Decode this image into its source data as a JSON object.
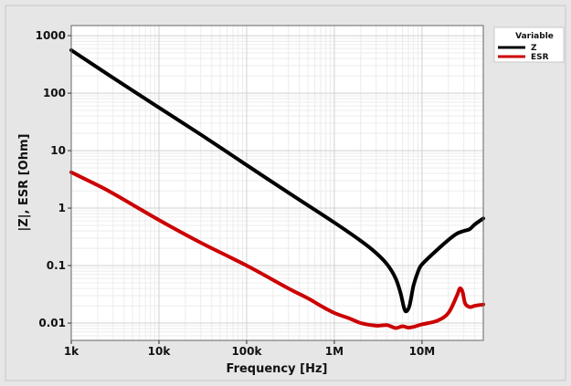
{
  "chart_data": {
    "type": "line",
    "title": "",
    "xlabel": "Frequency [Hz]",
    "ylabel": "|Z|, ESR [Ohm]",
    "x_scale": "log",
    "y_scale": "log",
    "xlim": [
      1000,
      50000000
    ],
    "ylim": [
      0.005,
      1500
    ],
    "x_ticks": [
      {
        "value": 1000,
        "label": "1k"
      },
      {
        "value": 10000,
        "label": "10k"
      },
      {
        "value": 100000,
        "label": "100k"
      },
      {
        "value": 1000000,
        "label": "1M"
      },
      {
        "value": 10000000,
        "label": "10M"
      }
    ],
    "y_ticks": [
      {
        "value": 0.01,
        "label": "0.01"
      },
      {
        "value": 0.1,
        "label": "0.1"
      },
      {
        "value": 1,
        "label": "1"
      },
      {
        "value": 10,
        "label": "10"
      },
      {
        "value": 100,
        "label": "100"
      },
      {
        "value": 1000,
        "label": "1000"
      }
    ],
    "grid": true,
    "legend": {
      "title": "Variable",
      "position": "top-right"
    },
    "series": [
      {
        "name": "Z",
        "color": "#000000",
        "points": [
          [
            1000,
            560
          ],
          [
            3000,
            185
          ],
          [
            10000,
            56
          ],
          [
            30000,
            19
          ],
          [
            100000,
            5.6
          ],
          [
            300000,
            1.85
          ],
          [
            1000000,
            0.56
          ],
          [
            2000000,
            0.27
          ],
          [
            3000000,
            0.165
          ],
          [
            4000000,
            0.105
          ],
          [
            5000000,
            0.06
          ],
          [
            5700000,
            0.033
          ],
          [
            6200000,
            0.019
          ],
          [
            6600000,
            0.016
          ],
          [
            7200000,
            0.02
          ],
          [
            8000000,
            0.045
          ],
          [
            9000000,
            0.078
          ],
          [
            10000000,
            0.105
          ],
          [
            15000000,
            0.19
          ],
          [
            20000000,
            0.28
          ],
          [
            25000000,
            0.36
          ],
          [
            30000000,
            0.4
          ],
          [
            35000000,
            0.43
          ],
          [
            40000000,
            0.52
          ],
          [
            50000000,
            0.66
          ]
        ]
      },
      {
        "name": "ESR",
        "color": "#cc0000",
        "points": [
          [
            1000,
            4.2
          ],
          [
            2000,
            2.5
          ],
          [
            3000,
            1.8
          ],
          [
            10000,
            0.62
          ],
          [
            30000,
            0.25
          ],
          [
            100000,
            0.1
          ],
          [
            300000,
            0.04
          ],
          [
            500000,
            0.027
          ],
          [
            700000,
            0.02
          ],
          [
            1000000,
            0.015
          ],
          [
            1500000,
            0.012
          ],
          [
            2000000,
            0.01
          ],
          [
            3000000,
            0.009
          ],
          [
            4000000,
            0.0092
          ],
          [
            5000000,
            0.0082
          ],
          [
            6000000,
            0.0088
          ],
          [
            7000000,
            0.0083
          ],
          [
            8000000,
            0.0086
          ],
          [
            10000000,
            0.0095
          ],
          [
            15000000,
            0.011
          ],
          [
            20000000,
            0.015
          ],
          [
            25000000,
            0.03
          ],
          [
            27000000,
            0.04
          ],
          [
            29000000,
            0.035
          ],
          [
            31000000,
            0.022
          ],
          [
            35000000,
            0.019
          ],
          [
            40000000,
            0.02
          ],
          [
            50000000,
            0.021
          ]
        ]
      }
    ]
  }
}
